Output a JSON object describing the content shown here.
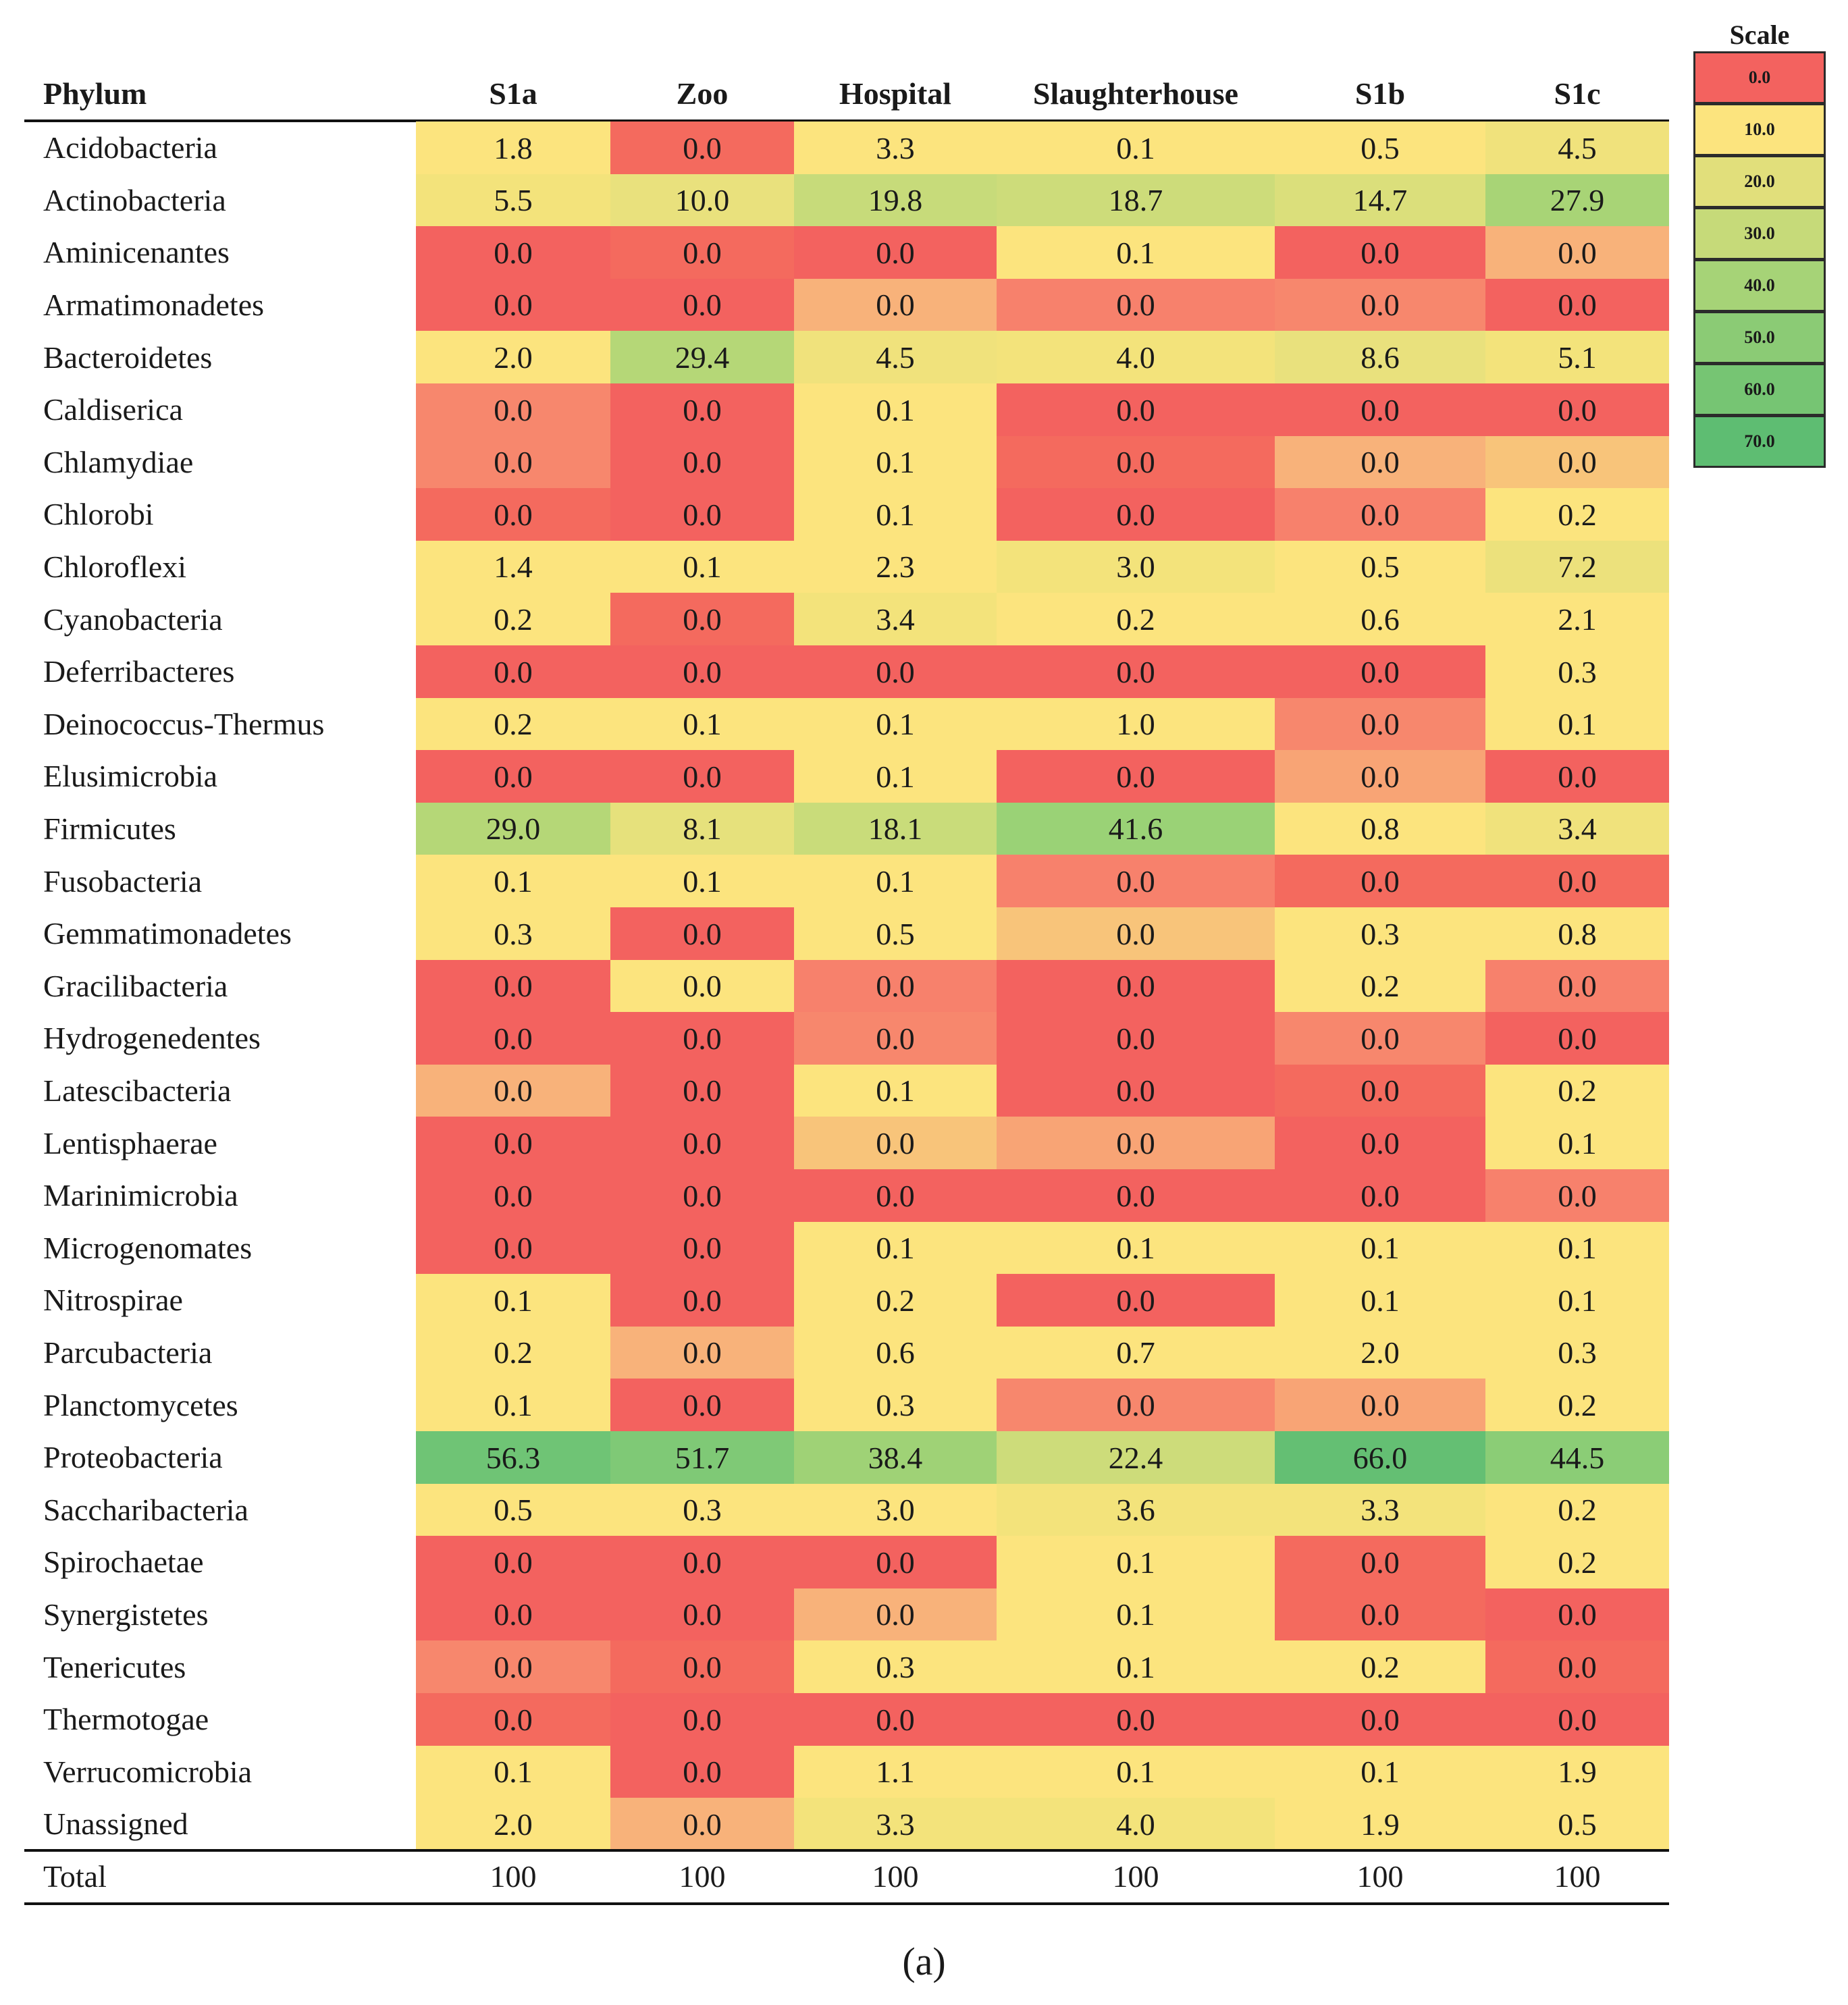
{
  "chart_data": {
    "type": "heatmap",
    "title": "",
    "row_header": "Phylum",
    "columns": [
      "S1a",
      "Zoo",
      "Hospital",
      "Slaughterhouse",
      "S1b",
      "S1c"
    ],
    "rows": [
      {
        "label": "Acidobacteria",
        "values": [
          1.8,
          0.0,
          3.3,
          0.1,
          0.5,
          4.5
        ]
      },
      {
        "label": "Actinobacteria",
        "values": [
          5.5,
          10.0,
          19.8,
          18.7,
          14.7,
          27.9
        ]
      },
      {
        "label": "Aminicenantes",
        "values": [
          0.0,
          0.0,
          0.0,
          0.1,
          0.0,
          0.0
        ]
      },
      {
        "label": "Armatimonadetes",
        "values": [
          0.0,
          0.0,
          0.0,
          0.0,
          0.0,
          0.0
        ]
      },
      {
        "label": "Bacteroidetes",
        "values": [
          2.0,
          29.4,
          4.5,
          4.0,
          8.6,
          5.1
        ]
      },
      {
        "label": "Caldiserica",
        "values": [
          0.0,
          0.0,
          0.1,
          0.0,
          0.0,
          0.0
        ]
      },
      {
        "label": "Chlamydiae",
        "values": [
          0.0,
          0.0,
          0.1,
          0.0,
          0.0,
          0.0
        ]
      },
      {
        "label": "Chlorobi",
        "values": [
          0.0,
          0.0,
          0.1,
          0.0,
          0.0,
          0.2
        ]
      },
      {
        "label": "Chloroflexi",
        "values": [
          1.4,
          0.1,
          2.3,
          3.0,
          0.5,
          7.2
        ]
      },
      {
        "label": "Cyanobacteria",
        "values": [
          0.2,
          0.0,
          3.4,
          0.2,
          0.6,
          2.1
        ]
      },
      {
        "label": "Deferribacteres",
        "values": [
          0.0,
          0.0,
          0.0,
          0.0,
          0.0,
          0.3
        ]
      },
      {
        "label": "Deinococcus-Thermus",
        "values": [
          0.2,
          0.1,
          0.1,
          1.0,
          0.0,
          0.1
        ]
      },
      {
        "label": "Elusimicrobia",
        "values": [
          0.0,
          0.0,
          0.1,
          0.0,
          0.0,
          0.0
        ]
      },
      {
        "label": "Firmicutes",
        "values": [
          29.0,
          8.1,
          18.1,
          41.6,
          0.8,
          3.4
        ]
      },
      {
        "label": "Fusobacteria",
        "values": [
          0.1,
          0.1,
          0.1,
          0.0,
          0.0,
          0.0
        ]
      },
      {
        "label": "Gemmatimonadetes",
        "values": [
          0.3,
          0.0,
          0.5,
          0.0,
          0.3,
          0.8
        ]
      },
      {
        "label": "Gracilibacteria",
        "values": [
          0.0,
          0.0,
          0.0,
          0.0,
          0.2,
          0.0
        ]
      },
      {
        "label": "Hydrogenedentes",
        "values": [
          0.0,
          0.0,
          0.0,
          0.0,
          0.0,
          0.0
        ]
      },
      {
        "label": "Latescibacteria",
        "values": [
          0.0,
          0.0,
          0.1,
          0.0,
          0.0,
          0.2
        ]
      },
      {
        "label": "Lentisphaerae",
        "values": [
          0.0,
          0.0,
          0.0,
          0.0,
          0.0,
          0.1
        ]
      },
      {
        "label": "Marinimicrobia",
        "values": [
          0.0,
          0.0,
          0.0,
          0.0,
          0.0,
          0.0
        ]
      },
      {
        "label": "Microgenomates",
        "values": [
          0.0,
          0.0,
          0.1,
          0.1,
          0.1,
          0.1
        ]
      },
      {
        "label": "Nitrospirae",
        "values": [
          0.1,
          0.0,
          0.2,
          0.0,
          0.1,
          0.1
        ]
      },
      {
        "label": "Parcubacteria",
        "values": [
          0.2,
          0.0,
          0.6,
          0.7,
          2.0,
          0.3
        ]
      },
      {
        "label": "Planctomycetes",
        "values": [
          0.1,
          0.0,
          0.3,
          0.0,
          0.0,
          0.2
        ]
      },
      {
        "label": "Proteobacteria",
        "values": [
          56.3,
          51.7,
          38.4,
          22.4,
          66.0,
          44.5
        ]
      },
      {
        "label": "Saccharibacteria",
        "values": [
          0.5,
          0.3,
          3.0,
          3.6,
          3.3,
          0.2
        ]
      },
      {
        "label": "Spirochaetae",
        "values": [
          0.0,
          0.0,
          0.0,
          0.1,
          0.0,
          0.2
        ]
      },
      {
        "label": "Synergistetes",
        "values": [
          0.0,
          0.0,
          0.0,
          0.1,
          0.0,
          0.0
        ]
      },
      {
        "label": "Tenericutes",
        "values": [
          0.0,
          0.0,
          0.3,
          0.1,
          0.2,
          0.0
        ]
      },
      {
        "label": "Thermotogae",
        "values": [
          0.0,
          0.0,
          0.0,
          0.0,
          0.0,
          0.0
        ]
      },
      {
        "label": "Verrucomicrobia",
        "values": [
          0.1,
          0.0,
          1.1,
          0.1,
          0.1,
          1.9
        ]
      },
      {
        "label": "Unassigned",
        "values": [
          2.0,
          0.0,
          3.3,
          4.0,
          1.9,
          0.5
        ]
      }
    ],
    "total": {
      "label": "Total",
      "values": [
        "100",
        "100",
        "100",
        "100",
        "100",
        "100"
      ]
    },
    "cell_colors": [
      [
        "#fce47e",
        "#f46a5e",
        "#fce47e",
        "#fce47e",
        "#fce47e",
        "#f0e27c"
      ],
      [
        "#f3e37b",
        "#e9e17d",
        "#c7db7a",
        "#cddc7a",
        "#dbdf7b",
        "#a8d476"
      ],
      [
        "#f3625f",
        "#f46a5e",
        "#f3625f",
        "#fce47e",
        "#f3625f",
        "#f8b27a"
      ],
      [
        "#f3625f",
        "#f3625f",
        "#f8b27a",
        "#f7816c",
        "#f7876d",
        "#f3625f"
      ],
      [
        "#fce47e",
        "#b5d777",
        "#f0e27c",
        "#f3e37b",
        "#e9e17d",
        "#f3e37b"
      ],
      [
        "#f7876d",
        "#f3625f",
        "#fce47e",
        "#f3625f",
        "#f3625f",
        "#f3625f"
      ],
      [
        "#f7876d",
        "#f3625f",
        "#fce47e",
        "#f46a5e",
        "#f8b27a",
        "#f8c47a"
      ],
      [
        "#f46a5e",
        "#f3625f",
        "#fce47e",
        "#f3625f",
        "#f7816c",
        "#fce47e"
      ],
      [
        "#fce47e",
        "#fce47e",
        "#fce47e",
        "#f3e37b",
        "#fce47e",
        "#ece17c"
      ],
      [
        "#fce47e",
        "#f46a5e",
        "#f3e37b",
        "#fce47e",
        "#fce47e",
        "#fce47e"
      ],
      [
        "#f3625f",
        "#f3625f",
        "#f3625f",
        "#f3625f",
        "#f3625f",
        "#fce47e"
      ],
      [
        "#fce47e",
        "#fce47e",
        "#fce47e",
        "#fce47e",
        "#f7876d",
        "#fce47e"
      ],
      [
        "#f3625f",
        "#f3625f",
        "#fce47e",
        "#f3625f",
        "#f8a475",
        "#f3625f"
      ],
      [
        "#b5d777",
        "#e6e17c",
        "#c9dc7a",
        "#9ad276",
        "#fce47e",
        "#f0e27c"
      ],
      [
        "#fce47e",
        "#fce47e",
        "#fce47e",
        "#f7816c",
        "#f46a5e",
        "#f46a5e"
      ],
      [
        "#fce47e",
        "#f3625f",
        "#fce47e",
        "#f8c47a",
        "#fce47e",
        "#fce47e"
      ],
      [
        "#f3625f",
        "#fce47e",
        "#f7816c",
        "#f3625f",
        "#fce47e",
        "#f7816c"
      ],
      [
        "#f3625f",
        "#f3625f",
        "#f7876d",
        "#f3625f",
        "#f7876d",
        "#f3625f"
      ],
      [
        "#f8b27a",
        "#f3625f",
        "#fce47e",
        "#f3625f",
        "#f46a5e",
        "#fce47e"
      ],
      [
        "#f3625f",
        "#f3625f",
        "#f8c47a",
        "#f8a475",
        "#f3625f",
        "#fce47e"
      ],
      [
        "#f3625f",
        "#f3625f",
        "#f3625f",
        "#f3625f",
        "#f3625f",
        "#f7816c"
      ],
      [
        "#f3625f",
        "#f3625f",
        "#fce47e",
        "#fce47e",
        "#fce47e",
        "#fce47e"
      ],
      [
        "#fce47e",
        "#f3625f",
        "#fce47e",
        "#f3625f",
        "#fce47e",
        "#fce47e"
      ],
      [
        "#fce47e",
        "#f8b27a",
        "#fce47e",
        "#fce47e",
        "#fce47e",
        "#fce47e"
      ],
      [
        "#fce47e",
        "#f3625f",
        "#fce47e",
        "#f7876d",
        "#f8a475",
        "#fce47e"
      ],
      [
        "#6fc475",
        "#7fc976",
        "#9fd276",
        "#cddc7a",
        "#64bf73",
        "#8bcd76"
      ],
      [
        "#fce47e",
        "#fce47e",
        "#fce47e",
        "#f3e37b",
        "#f3e37b",
        "#fce47e"
      ],
      [
        "#f3625f",
        "#f3625f",
        "#f3625f",
        "#fce47e",
        "#f46a5e",
        "#fce47e"
      ],
      [
        "#f3625f",
        "#f3625f",
        "#f8b27a",
        "#fce47e",
        "#f46a5e",
        "#f3625f"
      ],
      [
        "#f7876d",
        "#f46a5e",
        "#fce47e",
        "#fce47e",
        "#fce47e",
        "#f46a5e"
      ],
      [
        "#f46a5e",
        "#f3625f",
        "#f3625f",
        "#f3625f",
        "#f3625f",
        "#f3625f"
      ],
      [
        "#fce47e",
        "#f3625f",
        "#fce47e",
        "#fce47e",
        "#fce47e",
        "#fce47e"
      ],
      [
        "#fce47e",
        "#f8b27a",
        "#f3e37b",
        "#f3e37b",
        "#fce47e",
        "#fce47e"
      ]
    ],
    "scale": {
      "title": "Scale",
      "levels": [
        {
          "label": "0.0",
          "color": "#f3625f"
        },
        {
          "label": "10.0",
          "color": "#fce47e"
        },
        {
          "label": "20.0",
          "color": "#e1df7b"
        },
        {
          "label": "30.0",
          "color": "#c6da79"
        },
        {
          "label": "40.0",
          "color": "#a6d377"
        },
        {
          "label": "50.0",
          "color": "#8bcb75"
        },
        {
          "label": "60.0",
          "color": "#76c573"
        },
        {
          "label": "70.0",
          "color": "#5ebd72"
        }
      ]
    }
  },
  "caption": "(a)"
}
